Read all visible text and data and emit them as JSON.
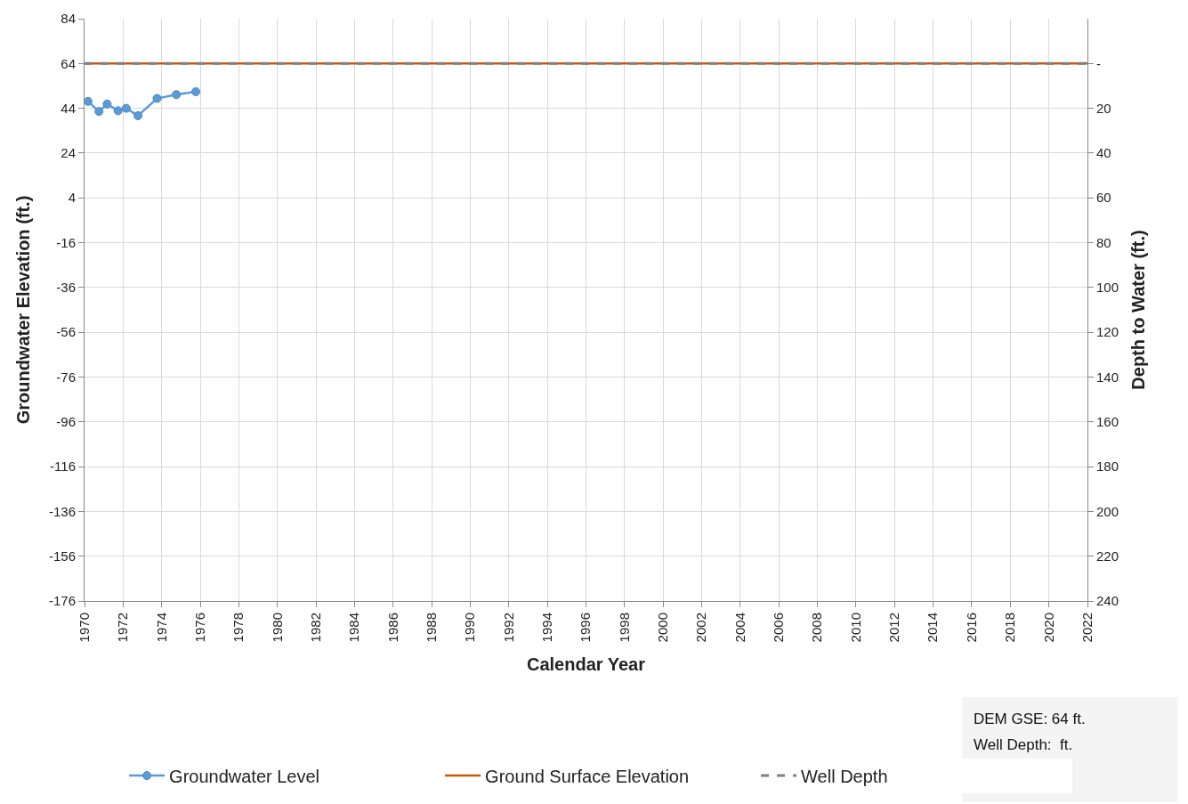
{
  "chart_data": {
    "type": "line",
    "xlabel": "Calendar Year",
    "ylabel": "Groundwater Elevation (ft.)",
    "y2label": "Depth to Water (ft.)",
    "xlim": [
      1970,
      2022
    ],
    "xticks": [
      1970,
      1972,
      1974,
      1976,
      1978,
      1980,
      1982,
      1984,
      1986,
      1988,
      1990,
      1992,
      1994,
      1996,
      1998,
      2000,
      2002,
      2004,
      2006,
      2008,
      2010,
      2012,
      2014,
      2016,
      2018,
      2020,
      2022
    ],
    "ylim": [
      -176,
      84
    ],
    "yticks": [
      -176,
      -156,
      -136,
      -116,
      -96,
      -76,
      -56,
      -36,
      -16,
      4,
      24,
      44,
      64,
      84
    ],
    "y2lim": [
      240,
      -20
    ],
    "y2ticks": [
      {
        "value": 0,
        "label": "-"
      },
      20,
      40,
      60,
      80,
      100,
      120,
      140,
      160,
      180,
      200,
      220,
      240
    ],
    "grid": true,
    "legend": "bottom",
    "series": [
      {
        "name": "Groundwater Level",
        "color": "#5b9bd5",
        "marker": "circle",
        "line_style": "solid",
        "x": [
          1970.18,
          1970.75,
          1971.17,
          1971.74,
          1972.16,
          1972.77,
          1973.76,
          1974.76,
          1975.77
        ],
        "values": [
          47.1,
          42.6,
          45.9,
          42.9,
          44.0,
          40.7,
          48.4,
          50.1,
          51.4
        ]
      },
      {
        "name": "Ground Surface Elevation",
        "color": "#c55a11",
        "marker": "none",
        "line_style": "solid",
        "x": [
          1970,
          2022
        ],
        "values": [
          64,
          64
        ]
      },
      {
        "name": "Well Depth",
        "color": "#7f7f7f",
        "marker": "none",
        "line_style": "dashed",
        "x": [
          1970,
          2022
        ],
        "values": [
          64,
          64
        ]
      }
    ],
    "annotations": [
      "DEM GSE: 64 ft.",
      "Well Depth:  ft."
    ]
  }
}
